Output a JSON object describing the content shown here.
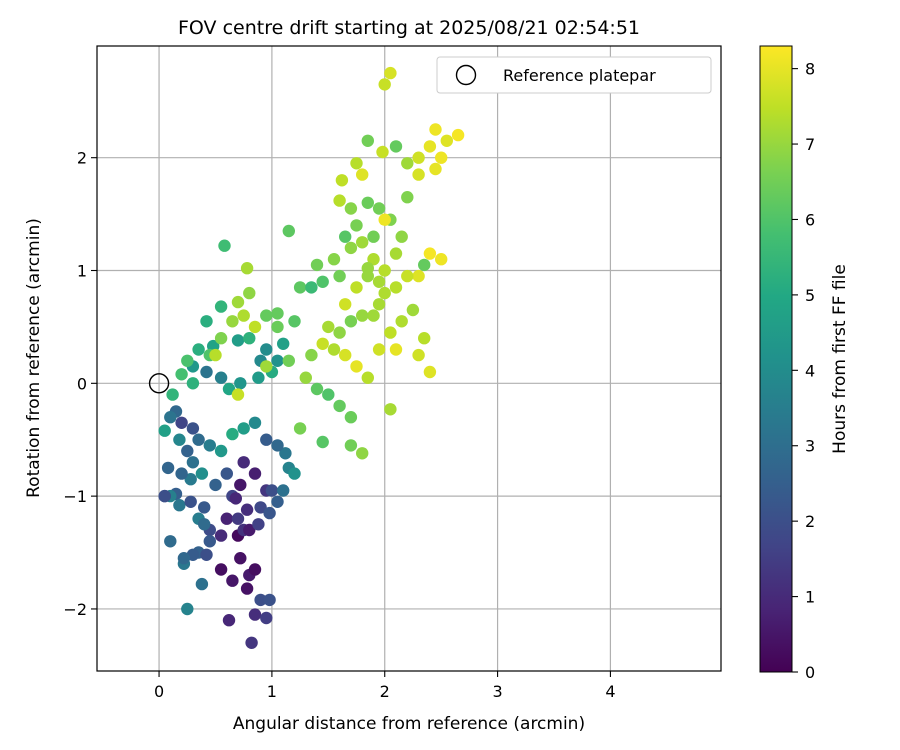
{
  "chart_data": {
    "type": "scatter",
    "title": "FOV centre drift starting at 2025/08/21 02:54:51",
    "xlabel": "Angular distance from reference (arcmin)",
    "ylabel": "Rotation from reference (arcmin)",
    "xlim": [
      -0.55,
      4.98
    ],
    "ylim": [
      -2.55,
      2.99
    ],
    "xticks": [
      0,
      1,
      2,
      3,
      4
    ],
    "yticks": [
      -2,
      -1,
      0,
      1,
      2
    ],
    "xtick_labels": [
      "0",
      "1",
      "2",
      "3",
      "4"
    ],
    "ytick_labels": [
      "−2",
      "−1",
      "0",
      "1",
      "2"
    ],
    "grid": true,
    "legend": {
      "position": "top-right",
      "entries": [
        {
          "label": "Reference platepar",
          "marker": "open-circle"
        }
      ]
    },
    "reference_point": {
      "x": 0,
      "y": 0
    },
    "colorbar": {
      "label": "Hours from first FF file",
      "min": 0,
      "max": 8.3,
      "ticks": [
        0,
        1,
        2,
        3,
        4,
        5,
        6,
        7,
        8
      ],
      "colormap": "viridis"
    },
    "series": [
      {
        "columns": [
          "x",
          "y",
          "hours"
        ],
        "points": [
          [
            0.55,
            -1.65,
            0.3
          ],
          [
            0.65,
            -1.75,
            0.5
          ],
          [
            0.72,
            -1.55,
            0.4
          ],
          [
            0.8,
            -1.7,
            0.6
          ],
          [
            0.85,
            -1.65,
            0.3
          ],
          [
            0.7,
            -1.35,
            0.2
          ],
          [
            0.78,
            -1.82,
            0.4
          ],
          [
            0.62,
            -2.1,
            0.9
          ],
          [
            0.85,
            -2.05,
            1.1
          ],
          [
            0.82,
            -2.3,
            1.3
          ],
          [
            0.95,
            -2.08,
            1.5
          ],
          [
            0.9,
            -1.92,
            2.0
          ],
          [
            0.98,
            -1.92,
            2.1
          ],
          [
            0.75,
            -1.3,
            1.2
          ],
          [
            0.6,
            -1.2,
            0.8
          ],
          [
            0.8,
            -1.3,
            0.6
          ],
          [
            0.55,
            -1.35,
            1.0
          ],
          [
            0.7,
            -1.2,
            1.4
          ],
          [
            0.9,
            -1.1,
            1.8
          ],
          [
            0.95,
            -0.95,
            1.3
          ],
          [
            0.65,
            -1.0,
            1.7
          ],
          [
            0.45,
            -1.3,
            1.9
          ],
          [
            0.4,
            -1.1,
            2.3
          ],
          [
            0.5,
            -0.9,
            2.6
          ],
          [
            0.6,
            -0.8,
            2.2
          ],
          [
            0.75,
            -0.7,
            1.0
          ],
          [
            0.85,
            -0.8,
            0.7
          ],
          [
            0.72,
            -0.9,
            0.5
          ],
          [
            0.68,
            -1.02,
            0.9
          ],
          [
            0.78,
            -1.12,
            1.1
          ],
          [
            0.88,
            -1.25,
            1.6
          ],
          [
            0.98,
            -1.15,
            2.2
          ],
          [
            1.05,
            -1.05,
            2.5
          ],
          [
            1.0,
            -0.95,
            2.0
          ],
          [
            1.1,
            -0.95,
            3.1
          ],
          [
            1.15,
            -0.75,
            3.7
          ],
          [
            1.2,
            -0.8,
            4.2
          ],
          [
            1.12,
            -0.62,
            3.3
          ],
          [
            1.05,
            -0.55,
            2.8
          ],
          [
            0.95,
            -0.5,
            2.4
          ],
          [
            0.85,
            -0.35,
            3.9
          ],
          [
            0.75,
            -0.4,
            4.6
          ],
          [
            0.65,
            -0.45,
            5.1
          ],
          [
            0.55,
            -0.6,
            4.4
          ],
          [
            0.45,
            -0.55,
            3.5
          ],
          [
            0.35,
            -0.5,
            2.9
          ],
          [
            0.3,
            -0.4,
            2.1
          ],
          [
            0.2,
            -0.35,
            1.7
          ],
          [
            0.15,
            -0.25,
            2.8
          ],
          [
            0.1,
            -0.3,
            3.2
          ],
          [
            0.05,
            -0.42,
            4.7
          ],
          [
            0.18,
            -0.5,
            3.8
          ],
          [
            0.25,
            -0.6,
            2.6
          ],
          [
            0.3,
            -0.7,
            3.1
          ],
          [
            0.38,
            -0.8,
            4.1
          ],
          [
            0.28,
            -0.85,
            3.4
          ],
          [
            0.2,
            -0.8,
            2.7
          ],
          [
            0.15,
            -0.98,
            2.5
          ],
          [
            0.1,
            -1.0,
            3.6
          ],
          [
            0.05,
            -1.0,
            2.2
          ],
          [
            0.18,
            -1.08,
            3.3
          ],
          [
            0.28,
            -1.05,
            2.1
          ],
          [
            0.35,
            -1.2,
            3.5
          ],
          [
            0.4,
            -1.25,
            2.9
          ],
          [
            0.45,
            -1.4,
            2.3
          ],
          [
            0.35,
            -1.5,
            2.6
          ],
          [
            0.42,
            -1.52,
            2.0
          ],
          [
            0.3,
            -1.52,
            2.4
          ],
          [
            0.22,
            -1.6,
            3.3
          ],
          [
            0.22,
            -1.55,
            2.8
          ],
          [
            0.08,
            -0.75,
            2.7
          ],
          [
            0.1,
            -1.4,
            2.9
          ],
          [
            0.38,
            -1.78,
            3.1
          ],
          [
            0.25,
            -2.0,
            3.7
          ],
          [
            0.05,
            -1.0,
            2.0
          ],
          [
            0.62,
            -0.05,
            4.9
          ],
          [
            0.72,
            0.0,
            4.3
          ],
          [
            0.55,
            0.05,
            3.6
          ],
          [
            0.42,
            0.1,
            3.2
          ],
          [
            0.3,
            0.15,
            4.4
          ],
          [
            0.35,
            0.3,
            5.2
          ],
          [
            0.48,
            0.33,
            4.8
          ],
          [
            0.7,
            0.38,
            4.6
          ],
          [
            0.8,
            0.4,
            5.3
          ],
          [
            0.95,
            0.3,
            4.0
          ],
          [
            1.05,
            0.2,
            4.2
          ],
          [
            1.1,
            0.35,
            4.7
          ],
          [
            0.9,
            0.2,
            3.9
          ],
          [
            1.0,
            0.1,
            5.1
          ],
          [
            0.88,
            0.05,
            4.5
          ],
          [
            0.3,
            0.0,
            5.3
          ],
          [
            0.2,
            0.08,
            5.8
          ],
          [
            0.12,
            -0.1,
            5.4
          ],
          [
            0.25,
            0.2,
            5.9
          ],
          [
            0.45,
            0.25,
            6.0
          ],
          [
            0.42,
            0.55,
            5.2
          ],
          [
            0.55,
            0.68,
            5.4
          ],
          [
            0.58,
            1.22,
            5.7
          ],
          [
            0.95,
            0.6,
            6.3
          ],
          [
            1.05,
            0.5,
            6.4
          ],
          [
            1.2,
            0.55,
            6.1
          ],
          [
            1.25,
            0.85,
            6.2
          ],
          [
            1.35,
            0.85,
            5.6
          ],
          [
            1.45,
            0.9,
            6.0
          ],
          [
            1.4,
            1.05,
            6.5
          ],
          [
            1.55,
            1.1,
            6.8
          ],
          [
            1.6,
            0.95,
            6.5
          ],
          [
            1.7,
            1.2,
            6.9
          ],
          [
            1.65,
            1.3,
            6.1
          ],
          [
            1.75,
            1.4,
            6.6
          ],
          [
            1.8,
            1.25,
            7.1
          ],
          [
            1.9,
            1.1,
            7.3
          ],
          [
            1.85,
            0.95,
            7.0
          ],
          [
            2.0,
            1.0,
            7.4
          ],
          [
            2.1,
            1.15,
            7.2
          ],
          [
            2.15,
            1.3,
            6.9
          ],
          [
            2.05,
            1.45,
            6.7
          ],
          [
            1.95,
            1.55,
            6.5
          ],
          [
            1.85,
            1.6,
            6.4
          ],
          [
            1.7,
            1.55,
            6.8
          ],
          [
            1.62,
            1.8,
            7.5
          ],
          [
            1.75,
            1.95,
            7.4
          ],
          [
            1.85,
            2.15,
            6.5
          ],
          [
            1.98,
            2.05,
            7.6
          ],
          [
            2.1,
            2.1,
            6.3
          ],
          [
            2.2,
            1.95,
            7.1
          ],
          [
            2.3,
            1.85,
            7.8
          ],
          [
            2.4,
            2.1,
            8.0
          ],
          [
            2.45,
            2.25,
            8.1
          ],
          [
            2.55,
            2.15,
            7.9
          ],
          [
            2.65,
            2.2,
            8.2
          ],
          [
            2.5,
            2.0,
            8.1
          ],
          [
            2.45,
            1.9,
            8.0
          ],
          [
            2.3,
            2.0,
            7.7
          ],
          [
            2.05,
            2.75,
            7.8
          ],
          [
            2.0,
            2.65,
            7.6
          ],
          [
            2.4,
            1.15,
            8.2
          ],
          [
            2.5,
            1.1,
            8.1
          ],
          [
            2.3,
            0.95,
            7.9
          ],
          [
            2.2,
            0.95,
            7.6
          ],
          [
            2.1,
            0.85,
            7.4
          ],
          [
            2.0,
            0.8,
            7.3
          ],
          [
            1.95,
            0.7,
            7.2
          ],
          [
            1.9,
            0.6,
            7.1
          ],
          [
            1.8,
            0.6,
            7.0
          ],
          [
            1.7,
            0.55,
            6.6
          ],
          [
            1.6,
            0.45,
            6.9
          ],
          [
            1.5,
            0.5,
            7.2
          ],
          [
            1.45,
            0.35,
            7.6
          ],
          [
            1.55,
            0.3,
            7.3
          ],
          [
            1.65,
            0.25,
            7.8
          ],
          [
            1.75,
            0.15,
            8.0
          ],
          [
            1.85,
            0.05,
            7.4
          ],
          [
            1.95,
            0.3,
            7.7
          ],
          [
            2.05,
            0.45,
            7.5
          ],
          [
            2.15,
            0.55,
            7.3
          ],
          [
            2.25,
            0.65,
            7.1
          ],
          [
            2.35,
            0.4,
            7.4
          ],
          [
            2.4,
            0.1,
            7.9
          ],
          [
            2.3,
            0.25,
            7.7
          ],
          [
            2.1,
            0.3,
            8.0
          ],
          [
            2.05,
            -0.23,
            7.2
          ],
          [
            1.8,
            -0.62,
            6.9
          ],
          [
            1.7,
            -0.55,
            6.5
          ],
          [
            1.7,
            -0.3,
            6.4
          ],
          [
            1.6,
            -0.2,
            6.3
          ],
          [
            1.5,
            -0.1,
            6.0
          ],
          [
            1.4,
            -0.05,
            6.2
          ],
          [
            1.35,
            0.25,
            6.8
          ],
          [
            1.25,
            -0.4,
            6.6
          ],
          [
            1.45,
            -0.52,
            6.1
          ],
          [
            1.3,
            0.05,
            7.0
          ],
          [
            1.15,
            0.2,
            6.5
          ],
          [
            1.05,
            0.62,
            6.3
          ],
          [
            0.7,
            0.72,
            7.1
          ],
          [
            0.8,
            0.8,
            6.9
          ],
          [
            0.78,
            1.02,
            7.2
          ],
          [
            0.85,
            0.5,
            7.5
          ],
          [
            0.75,
            0.6,
            7.3
          ],
          [
            0.65,
            0.55,
            7.0
          ],
          [
            0.55,
            0.4,
            6.7
          ],
          [
            0.95,
            0.15,
            7.1
          ],
          [
            0.5,
            0.25,
            7.4
          ],
          [
            0.7,
            -0.1,
            7.6
          ],
          [
            1.15,
            1.35,
            6.2
          ],
          [
            1.6,
            1.62,
            7.4
          ],
          [
            1.8,
            1.85,
            7.9
          ],
          [
            2.0,
            1.45,
            8.1
          ],
          [
            2.2,
            1.65,
            6.7
          ],
          [
            2.35,
            1.05,
            6.3
          ],
          [
            1.9,
            1.3,
            6.5
          ],
          [
            1.85,
            1.02,
            7.0
          ],
          [
            1.95,
            0.9,
            7.2
          ],
          [
            1.75,
            0.85,
            7.5
          ],
          [
            1.65,
            0.7,
            7.7
          ]
        ]
      }
    ]
  }
}
